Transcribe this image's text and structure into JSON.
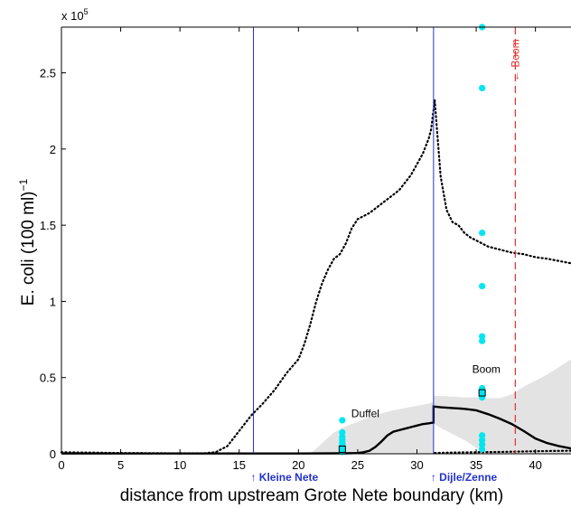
{
  "chart_data": {
    "type": "line",
    "xlabel": "distance from upstream Grote Nete boundary (km)",
    "ylabel_main": "E. coli (100 ml)",
    "ylabel_exp": "−1",
    "y_multiplier": "x 10",
    "y_multiplier_exp": "5",
    "xlim": [
      0,
      43
    ],
    "ylim": [
      0,
      280000
    ],
    "x_ticks": [
      0,
      5,
      10,
      15,
      20,
      25,
      30,
      35,
      40
    ],
    "x_tick_labels": [
      "0",
      "5",
      "10",
      "15",
      "20",
      "25",
      "30",
      "35",
      "40"
    ],
    "y_ticks": [
      0,
      50000,
      100000,
      150000,
      200000,
      250000
    ],
    "y_tick_labels": [
      "0",
      "0.5",
      "1",
      "1.5",
      "2",
      "2.5"
    ],
    "grid": false,
    "series": [
      {
        "style": "dotted",
        "color": "#000000",
        "x": [
          0,
          5,
          10,
          12,
          13,
          14,
          15,
          16,
          17,
          18,
          19,
          20,
          20.5,
          21,
          21.5,
          22,
          22.5,
          23,
          23.5,
          24,
          24.5,
          25,
          25.5,
          26,
          26.5,
          27,
          27.5,
          28,
          28.5,
          29,
          29.5,
          30,
          30.5,
          31,
          31.2,
          31.5
        ],
        "y": [
          1000,
          500,
          300,
          300,
          1000,
          5000,
          15000,
          25000,
          33000,
          42000,
          53000,
          62000,
          72000,
          85000,
          100000,
          112000,
          121000,
          128000,
          131000,
          138000,
          148000,
          154000,
          156000,
          158000,
          161000,
          164000,
          167000,
          170000,
          173000,
          178000,
          183000,
          190000,
          197000,
          207000,
          213000,
          232000
        ]
      },
      {
        "style": "dotted",
        "color": "#000000",
        "x": [
          31.5,
          32,
          32.5,
          33,
          33.5,
          34,
          34.5,
          35,
          36,
          37,
          38,
          39,
          40,
          41,
          42,
          43
        ],
        "y": [
          232000,
          182000,
          160000,
          152000,
          150000,
          145000,
          142000,
          140000,
          136000,
          134000,
          132000,
          131000,
          129000,
          128000,
          126500,
          125000
        ]
      },
      {
        "style": "dotted",
        "color": "#000000",
        "x": [
          31.5,
          33,
          35,
          37,
          39,
          41,
          43
        ],
        "y": [
          500,
          800,
          1000,
          1200,
          1500,
          1800,
          2000
        ]
      },
      {
        "style": "solid",
        "color": "#000000",
        "x": [
          0,
          5,
          10,
          15,
          20,
          24,
          25,
          25.5,
          26,
          26.5,
          27,
          27.5,
          28,
          28.5,
          29,
          29.5,
          30,
          30.5,
          31,
          31.4,
          31.4,
          32,
          33,
          34,
          35,
          36,
          37,
          38,
          39,
          40,
          41,
          42,
          43
        ],
        "y": [
          200,
          200,
          200,
          200,
          200,
          300,
          500,
          1000,
          2000,
          4500,
          8000,
          12000,
          14500,
          15500,
          16500,
          17500,
          18500,
          19500,
          20000,
          20500,
          31000,
          30500,
          30000,
          29500,
          28500,
          26000,
          23000,
          19500,
          15000,
          10000,
          7000,
          5000,
          3500
        ]
      }
    ],
    "uncertainty_band": {
      "color": "#e3e3e3",
      "upper": {
        "x": [
          21,
          22,
          23,
          24,
          25,
          26,
          27,
          28,
          29,
          30,
          31,
          31.4,
          31.4,
          32,
          33,
          34,
          35,
          36,
          37,
          38,
          39,
          40,
          41,
          42,
          43
        ],
        "y": [
          0,
          7000,
          14000,
          18000,
          21000,
          24000,
          26500,
          28500,
          30000,
          31500,
          33000,
          34000,
          38000,
          38000,
          37500,
          37000,
          37000,
          36500,
          36500,
          39000,
          44000,
          48000,
          52000,
          57000,
          62000
        ]
      },
      "lower": {
        "x": [
          43,
          42,
          41,
          40,
          39,
          38,
          37,
          36,
          35,
          34,
          33,
          32,
          31.4,
          31.4,
          31,
          30,
          29,
          28,
          27,
          26,
          25,
          24,
          23,
          22,
          21
        ],
        "y": [
          0,
          0,
          0,
          0,
          0,
          0,
          0,
          0,
          4000,
          9000,
          13000,
          17000,
          20000,
          0,
          0,
          0,
          0,
          0,
          0,
          0,
          0,
          0,
          0,
          0,
          0
        ]
      }
    },
    "observations": {
      "color": "#00e5ee",
      "points": [
        {
          "x": 23.7,
          "y": 22000
        },
        {
          "x": 23.7,
          "y": 14000
        },
        {
          "x": 23.7,
          "y": 11000
        },
        {
          "x": 23.7,
          "y": 9000
        },
        {
          "x": 23.7,
          "y": 7000
        },
        {
          "x": 23.7,
          "y": 5500
        },
        {
          "x": 23.7,
          "y": 4000
        },
        {
          "x": 23.7,
          "y": 2500
        },
        {
          "x": 23.7,
          "y": 1200
        },
        {
          "x": 35.5,
          "y": 280000
        },
        {
          "x": 35.5,
          "y": 240000
        },
        {
          "x": 35.5,
          "y": 145000
        },
        {
          "x": 35.5,
          "y": 110000
        },
        {
          "x": 35.5,
          "y": 77000
        },
        {
          "x": 35.5,
          "y": 74000
        },
        {
          "x": 35.5,
          "y": 43000
        },
        {
          "x": 35.5,
          "y": 41000
        },
        {
          "x": 35.5,
          "y": 38500
        },
        {
          "x": 35.5,
          "y": 37000
        },
        {
          "x": 35.5,
          "y": 12000
        },
        {
          "x": 35.5,
          "y": 9000
        },
        {
          "x": 35.5,
          "y": 6000
        },
        {
          "x": 35.5,
          "y": 3000
        }
      ]
    },
    "observation_means": [
      {
        "x": 23.7,
        "y": 3000
      },
      {
        "x": 35.5,
        "y": 40000
      }
    ],
    "vertical_lines": [
      {
        "x": 16.2,
        "color": "#2233cc",
        "style": "solid",
        "label": "Kleine Nete",
        "arrow": "↑"
      },
      {
        "x": 31.4,
        "color": "#2233cc",
        "style": "solid",
        "label": "Dijle/Zenne",
        "arrow": "↑"
      },
      {
        "x": 38.3,
        "color": "#e03030",
        "style": "dashed",
        "label": "Boom",
        "arrow": "←"
      }
    ],
    "annotations": [
      {
        "text": "Duffel",
        "x": 24.0,
        "y": 24000
      },
      {
        "text": "Boom",
        "x": 34.2,
        "y": 53000
      }
    ]
  }
}
